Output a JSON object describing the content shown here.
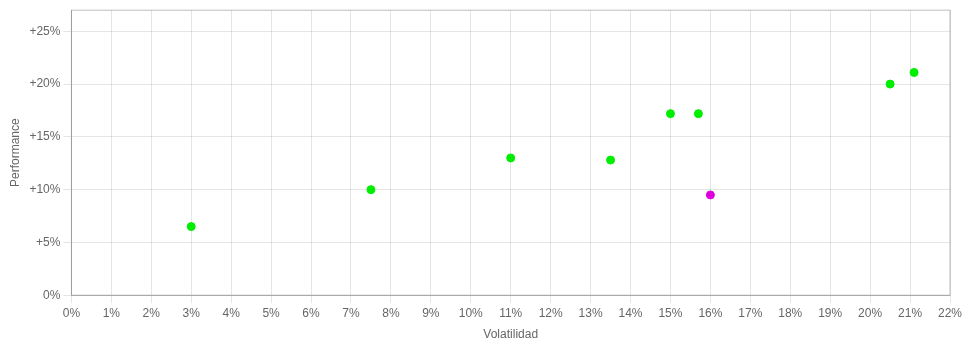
{
  "chart_data": {
    "type": "scatter",
    "xlabel": "Volatilidad",
    "ylabel": "Performance",
    "x": [
      0.03,
      0.075,
      0.11,
      0.135,
      0.15,
      0.157,
      0.16,
      0.205,
      0.211
    ],
    "values": [
      0.065,
      0.1,
      0.13,
      0.128,
      0.172,
      0.172,
      0.095,
      0.2,
      0.211
    ],
    "colors": [
      "#00ee00",
      "#00ee00",
      "#00ee00",
      "#00ee00",
      "#00ee00",
      "#00ee00",
      "#dd00dd",
      "#00ee00",
      "#00ee00"
    ],
    "xlim": [
      0.0,
      0.22
    ],
    "ylim": [
      0.0,
      0.27
    ],
    "xticks": [
      {
        "value": 0.0,
        "label": "0%"
      },
      {
        "value": 0.01,
        "label": "1%"
      },
      {
        "value": 0.02,
        "label": "2%"
      },
      {
        "value": 0.03,
        "label": "3%"
      },
      {
        "value": 0.04,
        "label": "4%"
      },
      {
        "value": 0.05,
        "label": "5%"
      },
      {
        "value": 0.06,
        "label": "6%"
      },
      {
        "value": 0.07,
        "label": "7%"
      },
      {
        "value": 0.08,
        "label": "8%"
      },
      {
        "value": 0.09,
        "label": "9%"
      },
      {
        "value": 0.1,
        "label": "10%"
      },
      {
        "value": 0.11,
        "label": "11%"
      },
      {
        "value": 0.12,
        "label": "12%"
      },
      {
        "value": 0.13,
        "label": "13%"
      },
      {
        "value": 0.14,
        "label": "14%"
      },
      {
        "value": 0.15,
        "label": "15%"
      },
      {
        "value": 0.16,
        "label": "16%"
      },
      {
        "value": 0.17,
        "label": "17%"
      },
      {
        "value": 0.18,
        "label": "18%"
      },
      {
        "value": 0.19,
        "label": "19%"
      },
      {
        "value": 0.2,
        "label": "20%"
      },
      {
        "value": 0.21,
        "label": "21%"
      },
      {
        "value": 0.22,
        "label": "22%"
      }
    ],
    "yticks": [
      {
        "value": 0.0,
        "label": "0%"
      },
      {
        "value": 0.05,
        "label": "+5%"
      },
      {
        "value": 0.1,
        "label": "+10%"
      },
      {
        "value": 0.15,
        "label": "+15%"
      },
      {
        "value": 0.2,
        "label": "+20%"
      },
      {
        "value": 0.25,
        "label": "+25%"
      }
    ],
    "grid": true
  }
}
